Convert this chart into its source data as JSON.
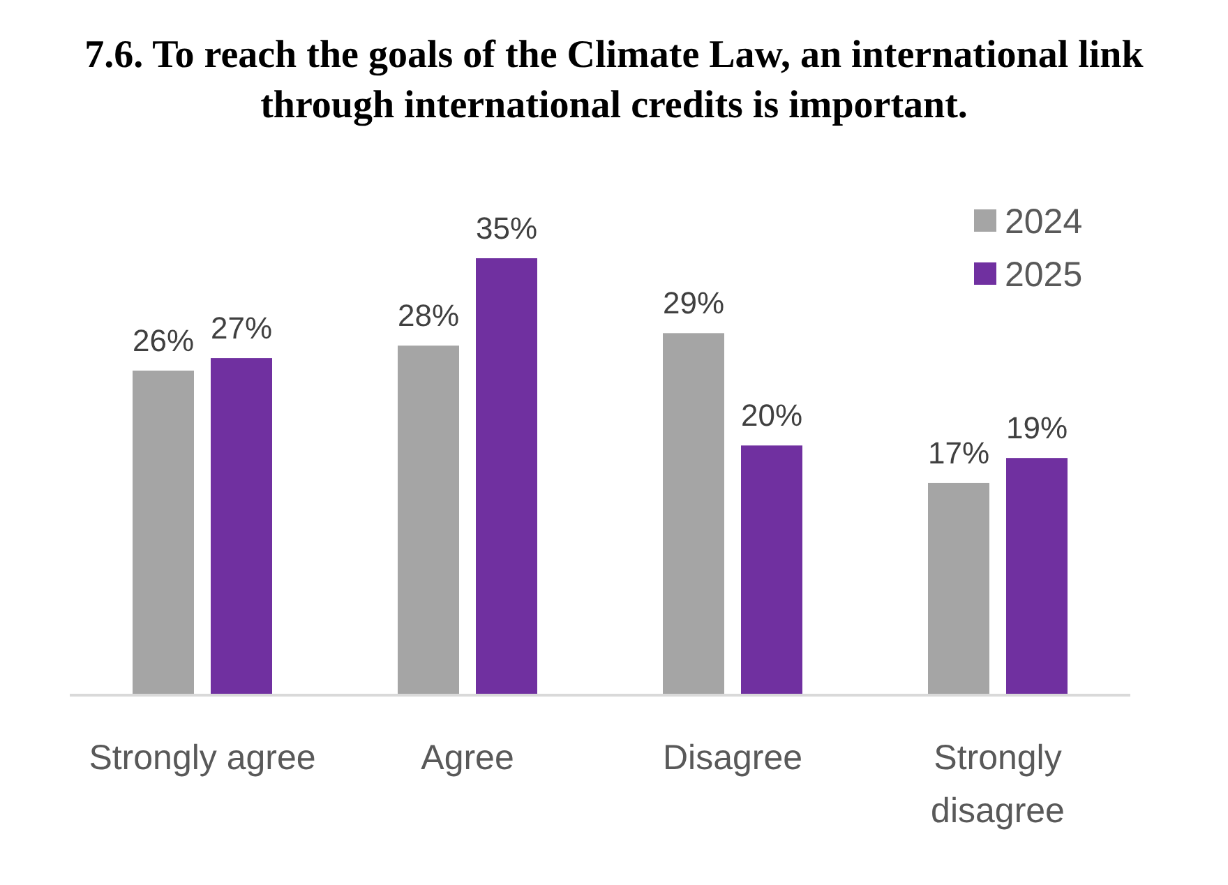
{
  "chart_data": {
    "type": "bar",
    "title": "7.6. To reach the goals of the Climate Law, an international link through international credits is important.",
    "categories": [
      "Strongly agree",
      "Agree",
      "Disagree",
      "Strongly disagree"
    ],
    "series": [
      {
        "name": "2024",
        "color": "#a5a5a5",
        "values": [
          26,
          28,
          29,
          17
        ],
        "value_labels": [
          "26%",
          "28%",
          "29%",
          "17%"
        ]
      },
      {
        "name": "2025",
        "color": "#7030a0",
        "values": [
          27,
          35,
          20,
          19
        ],
        "value_labels": [
          "27%",
          "35%",
          "20%",
          "19%"
        ]
      }
    ],
    "legend": "top right",
    "tick_labels": "x"
  }
}
